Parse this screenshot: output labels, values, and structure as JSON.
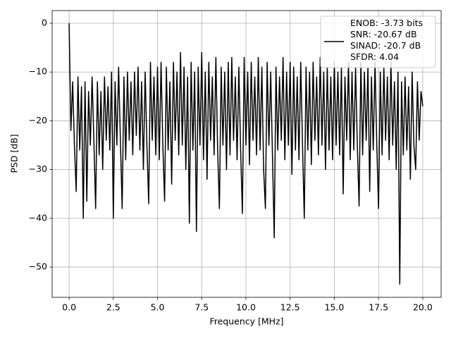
{
  "chart_data": {
    "type": "line",
    "xlabel": "Frequency [MHz]",
    "ylabel": "PSD [dB]",
    "xlim": [
      -0.96,
      21.04
    ],
    "ylim": [
      -56.2,
      2.6
    ],
    "xticks": [
      {
        "value": 0,
        "label": "0.0"
      },
      2.5,
      {
        "value": 5,
        "label": "5.0"
      },
      7.5,
      {
        "value": 10,
        "label": "10.0"
      },
      12.5,
      {
        "value": 15,
        "label": "15.0"
      },
      17.5,
      {
        "value": 20,
        "label": "20.0"
      }
    ],
    "yticks": [
      {
        "value": 0,
        "label": "0"
      },
      {
        "value": -10,
        "label": "−10"
      },
      {
        "value": -20,
        "label": "−20"
      },
      {
        "value": -30,
        "label": "−30"
      },
      {
        "value": -40,
        "label": "−40"
      },
      {
        "value": -50,
        "label": "−50"
      }
    ],
    "grid": true,
    "legend": "upper right",
    "x": [
      0,
      0.1,
      0.2,
      0.3,
      0.4,
      0.5,
      0.6,
      0.7,
      0.8,
      0.9,
      1,
      1.1,
      1.2,
      1.3,
      1.4,
      1.5,
      1.6,
      1.7,
      1.8,
      1.9,
      2,
      2.1,
      2.2,
      2.3,
      2.4,
      2.5,
      2.6,
      2.7,
      2.8,
      2.9,
      3,
      3.1,
      3.2,
      3.3,
      3.4,
      3.5,
      3.6,
      3.7,
      3.8,
      3.9,
      4,
      4.1,
      4.2,
      4.3,
      4.4,
      4.5,
      4.6,
      4.7,
      4.8,
      4.9,
      5,
      5.1,
      5.2,
      5.3,
      5.4,
      5.5,
      5.6,
      5.7,
      5.8,
      5.9,
      6,
      6.1,
      6.2,
      6.3,
      6.4,
      6.5,
      6.6,
      6.7,
      6.8,
      6.9,
      7,
      7.1,
      7.2,
      7.3,
      7.4,
      7.5,
      7.6,
      7.7,
      7.8,
      7.9,
      8,
      8.1,
      8.2,
      8.3,
      8.4,
      8.5,
      8.6,
      8.7,
      8.8,
      8.9,
      9,
      9.1,
      9.2,
      9.3,
      9.4,
      9.5,
      9.6,
      9.7,
      9.8,
      9.9,
      10,
      10.1,
      10.2,
      10.3,
      10.4,
      10.5,
      10.6,
      10.7,
      10.8,
      10.9,
      11,
      11.1,
      11.2,
      11.3,
      11.4,
      11.5,
      11.6,
      11.7,
      11.8,
      11.9,
      12,
      12.1,
      12.2,
      12.3,
      12.4,
      12.5,
      12.6,
      12.7,
      12.8,
      12.9,
      13,
      13.1,
      13.2,
      13.3,
      13.4,
      13.5,
      13.6,
      13.7,
      13.8,
      13.9,
      14,
      14.1,
      14.2,
      14.3,
      14.4,
      14.5,
      14.6,
      14.7,
      14.8,
      14.9,
      15,
      15.1,
      15.2,
      15.3,
      15.4,
      15.5,
      15.6,
      15.7,
      15.8,
      15.9,
      16,
      16.1,
      16.2,
      16.3,
      16.4,
      16.5,
      16.6,
      16.7,
      16.8,
      16.9,
      17,
      17.1,
      17.2,
      17.3,
      17.4,
      17.5,
      17.6,
      17.7,
      17.8,
      17.9,
      18,
      18.1,
      18.2,
      18.3,
      18.4,
      18.5,
      18.6,
      18.7,
      18.8,
      18.9,
      19,
      19.1,
      19.2,
      19.3,
      19.4,
      19.5,
      19.6,
      19.7,
      19.8,
      19.9,
      20
    ],
    "series": [
      {
        "name": "ENOB: -3.73 bits\nSNR: -20.67 dB\nSINAD: -20.7 dB\nSFDR: 4.04",
        "color": "#000000",
        "values": [
          0,
          -22,
          -12,
          -25,
          -34.5,
          -11,
          -26,
          -13,
          -40,
          -12,
          -36.5,
          -14,
          -25,
          -11,
          -24,
          -38,
          -12,
          -27,
          -14,
          -30,
          -11,
          -24,
          -13,
          -26,
          -10,
          -40,
          -12,
          -25,
          -9,
          -24,
          -38,
          -11,
          -28,
          -10,
          -24,
          -12,
          -27,
          -10,
          -23,
          -9,
          -26,
          -12,
          -30,
          -10,
          -25,
          -37,
          -8,
          -24,
          -11,
          -27,
          -9,
          -28,
          -8,
          -25,
          -36.5,
          -9,
          -26,
          -12,
          -33,
          -8,
          -24,
          -10,
          -27,
          -6,
          -25,
          -9,
          -30,
          -11,
          -41,
          -8,
          -26,
          -10,
          -42.7,
          -9,
          -25,
          -6,
          -28,
          -10,
          -32,
          -8,
          -24,
          -11,
          -27,
          -7,
          -26,
          -38,
          -9,
          -25,
          -10,
          -30,
          -8,
          -27,
          -7,
          -24,
          -11,
          -28,
          -9,
          -26,
          -39,
          -7,
          -25,
          -10,
          -29,
          -8,
          -24,
          -11,
          -27,
          -7,
          -26,
          -9,
          -30,
          -38,
          -8,
          -25,
          -10,
          -27,
          -44,
          -9,
          -26,
          -11,
          -24,
          -7,
          -28,
          -10,
          -25,
          -8,
          -31,
          -9,
          -26,
          -11,
          -28,
          -8,
          -25,
          -40,
          -9,
          -26,
          -10,
          -29,
          -8,
          -24,
          -11,
          -27,
          -7,
          -25,
          -10,
          -30,
          -9,
          -26,
          -11,
          -28,
          -8,
          -25,
          -10,
          -27,
          -9,
          -35,
          -11,
          -24,
          -8,
          -28,
          -10,
          -26,
          -9,
          -25,
          -37.5,
          -8,
          -27,
          -10,
          -24,
          -9,
          -34.5,
          -11,
          -26,
          -8,
          -25,
          -38,
          -10,
          -27,
          -9,
          -24,
          -11,
          -28,
          -8,
          -25,
          -12,
          -30,
          -10,
          -53.5,
          -12,
          -27,
          -11,
          -26,
          -13,
          -32,
          -10,
          -25,
          -30,
          -12,
          -24,
          -14,
          -17
        ]
      }
    ]
  }
}
